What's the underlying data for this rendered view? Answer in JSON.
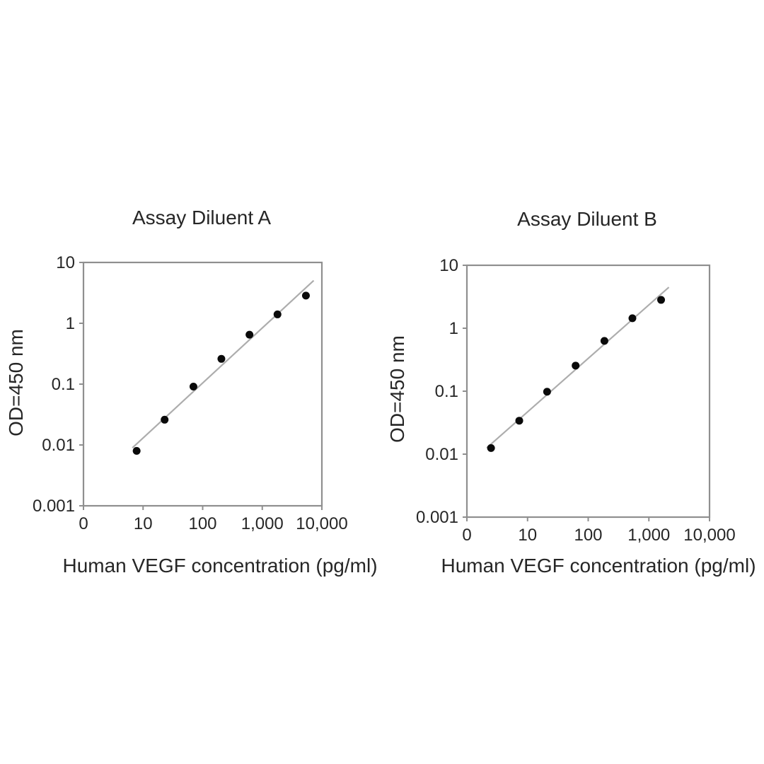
{
  "figure": {
    "description_texts": {
      "title_a": "Assay Diluent A",
      "title_b": "Assay Diluent B"
    }
  },
  "colors": {
    "background": "#ffffff",
    "axis": "#8f8f8f",
    "trendline": "#adadad",
    "point": "#0a0a0a",
    "text": "#262626"
  },
  "chart_data": [
    {
      "id": "assay-diluent-a",
      "type": "scatter",
      "title": "Assay Diluent A",
      "xlabel": "Human VEGF concentration (pg/ml)",
      "ylabel": "OD=450 nm",
      "x_scale": "log",
      "y_scale": "log",
      "x": [
        7.8,
        23,
        70,
        206,
        610,
        1800,
        5400
      ],
      "y": [
        0.008,
        0.026,
        0.091,
        0.26,
        0.65,
        1.4,
        2.85
      ],
      "x_tick_labels": [
        "0",
        "10",
        "100",
        "1,000",
        "10,000"
      ],
      "y_tick_labels": [
        "10",
        "1",
        "0.1",
        "0.01",
        "0.001"
      ],
      "xlim": [
        1,
        10000
      ],
      "ylim": [
        0.001,
        10
      ],
      "trendline": true,
      "grid": false,
      "legend": null
    },
    {
      "id": "assay-diluent-b",
      "type": "scatter",
      "title": "Assay Diluent B",
      "xlabel": "Human VEGF concentration (pg/ml)",
      "ylabel": "OD=450 nm",
      "x_scale": "log",
      "y_scale": "log",
      "x": [
        2.5,
        7.3,
        21,
        62,
        185,
        535,
        1590
      ],
      "y": [
        0.0125,
        0.034,
        0.098,
        0.255,
        0.63,
        1.44,
        2.82
      ],
      "x_tick_labels": [
        "0",
        "10",
        "100",
        "1,000",
        "10,000"
      ],
      "y_tick_labels": [
        "10",
        "1",
        "0.1",
        "0.01",
        "0.001"
      ],
      "xlim": [
        1,
        10000
      ],
      "ylim": [
        0.001,
        10
      ],
      "trendline": true,
      "grid": false,
      "legend": null
    }
  ]
}
